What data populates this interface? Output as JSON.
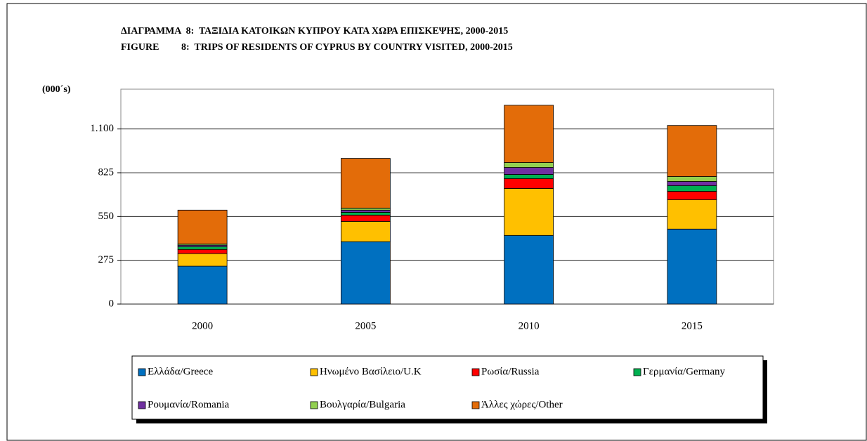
{
  "chart_data": {
    "type": "bar",
    "stacked": true,
    "title": "ΔΙΑΓΡΑΜΜΑ  8:  ΤΑΞΙΔΙΑ ΚΑΤΟΙΚΩΝ ΚΥΠΡΟΥ ΚΑΤΑ ΧΩΡΑ ΕΠΙΣΚΕΨΗΣ, 2000-2015",
    "subtitle": "FIGURE         8:  TRIPS OF RESIDENTS OF CYPRUS BY COUNTRY VISITED, 2000-2015",
    "y_label": "(000´s)",
    "categories": [
      "2000",
      "2005",
      "2010",
      "2015"
    ],
    "series": [
      {
        "name": "Ελλάδα/Greece",
        "color": "#0070c0",
        "values": [
          238,
          392,
          431,
          471
        ]
      },
      {
        "name": "Ηνωμένο Βασίλειο/U.K",
        "color": "#ffc000",
        "values": [
          79,
          127,
          295,
          185
        ]
      },
      {
        "name": "Ρωσία/Russia",
        "color": "#ff0000",
        "values": [
          26,
          40,
          62,
          52
        ]
      },
      {
        "name": "Γερμανία/Germany",
        "color": "#00b050",
        "values": [
          18,
          17,
          26,
          36
        ]
      },
      {
        "name": "Ρουμανία/Romania",
        "color": "#7030a0",
        "values": [
          9,
          14,
          44,
          26
        ]
      },
      {
        "name": "Βουλγαρία/Bulgaria",
        "color": "#92d050",
        "values": [
          8,
          13,
          31,
          31
        ]
      },
      {
        "name": "Άλλες χώρες/Other",
        "color": "#e36c09",
        "values": [
          212,
          312,
          360,
          321
        ]
      }
    ],
    "ylim": [
      0,
      1350
    ],
    "yticks": [
      0,
      275,
      550,
      825,
      {
        "value": 1100,
        "label": "1.100"
      }
    ],
    "grid": true,
    "legend": "bottom"
  }
}
